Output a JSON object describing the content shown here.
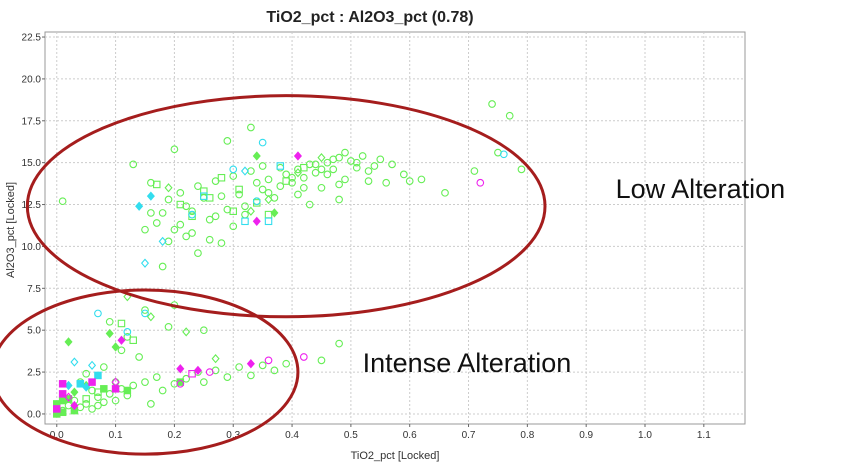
{
  "chart_data": {
    "type": "scatter",
    "title": "TiO2_pct : Al2O3_pct (0.78)",
    "xlabel": "TiO2_pct [Locked]",
    "ylabel": "Al2O3_pct [Locked]",
    "xlim": [
      -0.02,
      1.17
    ],
    "ylim": [
      -0.6,
      22.8
    ],
    "x_ticks": [
      "0.0",
      "0.1",
      "0.2",
      "0.3",
      "0.4",
      "0.5",
      "0.6",
      "0.7",
      "0.8",
      "0.9",
      "1.0",
      "1.1"
    ],
    "y_ticks": [
      "0.0",
      "2.5",
      "5.0",
      "7.5",
      "10.0",
      "12.5",
      "15.0",
      "17.5",
      "20.0",
      "22.5"
    ],
    "grid": true,
    "colors": {
      "green": "#66ee55",
      "cyan": "#33ddee",
      "magenta": "#ee22ee",
      "ellipse": "#a51d1d"
    },
    "annotations": [
      {
        "text": "Low Alteration",
        "x": 0.95,
        "y": 12.9,
        "ellipse": {
          "cx": 0.39,
          "cy": 12.4,
          "rx": 0.44,
          "ry": 6.6
        }
      },
      {
        "text": "Intense Alteration",
        "x": 0.52,
        "y": 2.5,
        "ellipse": {
          "cx": 0.15,
          "cy": 2.5,
          "rx": 0.26,
          "ry": 4.9
        }
      }
    ],
    "series": [
      {
        "name": "green-circle",
        "color": "#66ee55",
        "marker": "circle",
        "filled": false,
        "points": [
          [
            0.01,
            0.2
          ],
          [
            0.02,
            0.5
          ],
          [
            0.03,
            0.8
          ],
          [
            0.04,
            0.4
          ],
          [
            0.05,
            0.6
          ],
          [
            0.06,
            0.3
          ],
          [
            0.07,
            1.0
          ],
          [
            0.08,
            0.7
          ],
          [
            0.09,
            1.2
          ],
          [
            0.1,
            0.8
          ],
          [
            0.11,
            1.5
          ],
          [
            0.12,
            1.1
          ],
          [
            0.13,
            1.7
          ],
          [
            0.15,
            1.9
          ],
          [
            0.16,
            0.6
          ],
          [
            0.17,
            2.2
          ],
          [
            0.18,
            1.4
          ],
          [
            0.2,
            1.8
          ],
          [
            0.22,
            2.1
          ],
          [
            0.24,
            2.5
          ],
          [
            0.25,
            1.9
          ],
          [
            0.27,
            2.6
          ],
          [
            0.29,
            2.2
          ],
          [
            0.31,
            2.8
          ],
          [
            0.33,
            2.3
          ],
          [
            0.35,
            2.9
          ],
          [
            0.37,
            2.6
          ],
          [
            0.39,
            3.0
          ],
          [
            0.45,
            3.2
          ],
          [
            0.48,
            4.2
          ],
          [
            0.09,
            5.5
          ],
          [
            0.12,
            4.6
          ],
          [
            0.15,
            6.2
          ],
          [
            0.2,
            6.5
          ],
          [
            0.11,
            3.8
          ],
          [
            0.19,
            5.2
          ],
          [
            0.25,
            5.0
          ],
          [
            0.08,
            2.8
          ],
          [
            0.14,
            3.4
          ],
          [
            0.13,
            14.9
          ],
          [
            0.16,
            13.8
          ],
          [
            0.17,
            11.4
          ],
          [
            0.18,
            12.0
          ],
          [
            0.19,
            12.8
          ],
          [
            0.2,
            11.0
          ],
          [
            0.21,
            13.2
          ],
          [
            0.22,
            12.4
          ],
          [
            0.23,
            10.8
          ],
          [
            0.24,
            13.6
          ],
          [
            0.25,
            12.9
          ],
          [
            0.26,
            11.6
          ],
          [
            0.27,
            13.9
          ],
          [
            0.28,
            10.2
          ],
          [
            0.29,
            12.2
          ],
          [
            0.3,
            14.2
          ],
          [
            0.31,
            13.1
          ],
          [
            0.32,
            11.9
          ],
          [
            0.33,
            14.5
          ],
          [
            0.34,
            12.7
          ],
          [
            0.35,
            13.4
          ],
          [
            0.36,
            14.0
          ],
          [
            0.37,
            12.9
          ],
          [
            0.38,
            13.6
          ],
          [
            0.39,
            14.3
          ],
          [
            0.4,
            13.8
          ],
          [
            0.41,
            14.6
          ],
          [
            0.42,
            14.1
          ],
          [
            0.43,
            14.9
          ],
          [
            0.44,
            14.4
          ],
          [
            0.45,
            13.5
          ],
          [
            0.46,
            15.0
          ],
          [
            0.47,
            14.6
          ],
          [
            0.48,
            15.3
          ],
          [
            0.49,
            14.0
          ],
          [
            0.5,
            15.1
          ],
          [
            0.51,
            14.7
          ],
          [
            0.52,
            15.4
          ],
          [
            0.53,
            13.9
          ],
          [
            0.54,
            14.8
          ],
          [
            0.55,
            15.2
          ],
          [
            0.57,
            14.9
          ],
          [
            0.59,
            14.3
          ],
          [
            0.62,
            14.0
          ],
          [
            0.66,
            13.2
          ],
          [
            0.71,
            14.5
          ],
          [
            0.74,
            18.5
          ],
          [
            0.77,
            17.8
          ],
          [
            0.79,
            14.6
          ],
          [
            0.75,
            15.6
          ],
          [
            0.33,
            17.1
          ],
          [
            0.29,
            16.3
          ],
          [
            0.24,
            9.6
          ],
          [
            0.22,
            10.6
          ],
          [
            0.18,
            8.8
          ],
          [
            0.2,
            15.8
          ],
          [
            0.26,
            10.4
          ],
          [
            0.3,
            11.2
          ],
          [
            0.35,
            14.8
          ],
          [
            0.36,
            13.2
          ],
          [
            0.34,
            13.8
          ],
          [
            0.38,
            14.7
          ],
          [
            0.4,
            14.1
          ],
          [
            0.42,
            13.5
          ],
          [
            0.44,
            14.9
          ],
          [
            0.46,
            14.3
          ],
          [
            0.48,
            13.7
          ],
          [
            0.41,
            13.1
          ],
          [
            0.43,
            12.5
          ],
          [
            0.45,
            14.6
          ],
          [
            0.47,
            15.2
          ],
          [
            0.49,
            15.6
          ],
          [
            0.51,
            15.0
          ],
          [
            0.53,
            14.5
          ],
          [
            0.32,
            12.4
          ],
          [
            0.28,
            13.0
          ],
          [
            0.27,
            11.8
          ],
          [
            0.23,
            12.1
          ],
          [
            0.21,
            11.3
          ],
          [
            0.19,
            10.3
          ],
          [
            0.16,
            12.0
          ],
          [
            0.15,
            11.0
          ],
          [
            0.01,
            12.7
          ],
          [
            0.48,
            12.8
          ],
          [
            0.56,
            13.8
          ],
          [
            0.6,
            13.9
          ],
          [
            0.04,
            1.9
          ],
          [
            0.06,
            1.4
          ],
          [
            0.07,
            0.5
          ],
          [
            0.1,
            1.9
          ],
          [
            0.05,
            2.4
          ]
        ]
      },
      {
        "name": "green-square",
        "color": "#66ee55",
        "marker": "square",
        "filled": false,
        "points": [
          [
            0.17,
            13.7
          ],
          [
            0.21,
            12.5
          ],
          [
            0.23,
            11.8
          ],
          [
            0.26,
            12.9
          ],
          [
            0.28,
            14.1
          ],
          [
            0.31,
            13.4
          ],
          [
            0.34,
            12.6
          ],
          [
            0.36,
            11.9
          ],
          [
            0.39,
            13.9
          ],
          [
            0.42,
            14.7
          ],
          [
            0.3,
            12.1
          ],
          [
            0.25,
            13.3
          ],
          [
            0.11,
            5.4
          ],
          [
            0.13,
            4.4
          ],
          [
            0.07,
            1.3
          ],
          [
            0.05,
            0.9
          ]
        ]
      },
      {
        "name": "green-diamond",
        "color": "#66ee55",
        "marker": "diamond",
        "filled": false,
        "points": [
          [
            0.12,
            7.0
          ],
          [
            0.16,
            5.8
          ],
          [
            0.22,
            4.9
          ],
          [
            0.27,
            3.3
          ],
          [
            0.33,
            12.1
          ],
          [
            0.36,
            12.8
          ],
          [
            0.41,
            14.4
          ],
          [
            0.45,
            15.3
          ],
          [
            0.19,
            13.5
          ]
        ]
      },
      {
        "name": "green-square-filled",
        "color": "#66ee55",
        "marker": "square",
        "filled": true,
        "points": [
          [
            0.0,
            0.3
          ],
          [
            0.0,
            0.6
          ],
          [
            0.01,
            0.1
          ],
          [
            0.02,
            0.9
          ],
          [
            0.0,
            0.0
          ],
          [
            0.01,
            0.8
          ],
          [
            0.03,
            0.2
          ],
          [
            0.08,
            1.5
          ],
          [
            0.12,
            1.4
          ],
          [
            0.21,
            1.9
          ]
        ]
      },
      {
        "name": "green-diamond-filled",
        "color": "#66ee55",
        "marker": "diamond",
        "filled": true,
        "points": [
          [
            0.02,
            4.3
          ],
          [
            0.03,
            1.3
          ],
          [
            0.09,
            4.8
          ],
          [
            0.1,
            4.0
          ],
          [
            0.37,
            12.0
          ],
          [
            0.34,
            15.4
          ],
          [
            0.05,
            1.7
          ]
        ]
      },
      {
        "name": "cyan-circle",
        "color": "#33ddee",
        "marker": "circle",
        "filled": false,
        "points": [
          [
            0.07,
            6.0
          ],
          [
            0.12,
            4.9
          ],
          [
            0.15,
            6.0
          ],
          [
            0.35,
            16.2
          ],
          [
            0.76,
            15.5
          ],
          [
            0.34,
            12.7
          ],
          [
            0.3,
            14.6
          ],
          [
            0.23,
            11.9
          ]
        ]
      },
      {
        "name": "cyan-square",
        "color": "#33ddee",
        "marker": "square",
        "filled": false,
        "points": [
          [
            0.32,
            11.5
          ],
          [
            0.36,
            11.5
          ],
          [
            0.25,
            13.0
          ],
          [
            0.38,
            14.8
          ]
        ]
      },
      {
        "name": "cyan-diamond",
        "color": "#33ddee",
        "marker": "diamond",
        "filled": false,
        "points": [
          [
            0.15,
            9.0
          ],
          [
            0.18,
            10.3
          ],
          [
            0.03,
            3.1
          ],
          [
            0.06,
            2.9
          ],
          [
            0.32,
            14.5
          ]
        ]
      },
      {
        "name": "cyan-diamond-filled",
        "color": "#33ddee",
        "marker": "diamond",
        "filled": true,
        "points": [
          [
            0.14,
            12.4
          ],
          [
            0.16,
            13.0
          ],
          [
            0.05,
            1.6
          ],
          [
            0.02,
            1.7
          ]
        ]
      },
      {
        "name": "cyan-square-filled",
        "color": "#33ddee",
        "marker": "square",
        "filled": true,
        "points": [
          [
            0.07,
            2.3
          ],
          [
            0.04,
            1.8
          ]
        ]
      },
      {
        "name": "magenta-circle",
        "color": "#ee22ee",
        "marker": "circle",
        "filled": false,
        "points": [
          [
            0.72,
            13.8
          ],
          [
            0.42,
            3.4
          ],
          [
            0.36,
            3.2
          ],
          [
            0.26,
            2.5
          ],
          [
            0.21,
            1.8
          ]
        ]
      },
      {
        "name": "magenta-square",
        "color": "#ee22ee",
        "marker": "square",
        "filled": false,
        "points": [
          [
            0.23,
            2.4
          ]
        ]
      },
      {
        "name": "magenta-diamond",
        "color": "#ee22ee",
        "marker": "diamond",
        "filled": false,
        "points": [
          [
            0.1,
            1.9
          ],
          [
            0.02,
            1.0
          ]
        ]
      },
      {
        "name": "magenta-diamond-filled",
        "color": "#ee22ee",
        "marker": "diamond",
        "filled": true,
        "points": [
          [
            0.34,
            11.5
          ],
          [
            0.41,
            15.4
          ],
          [
            0.21,
            2.7
          ],
          [
            0.24,
            2.6
          ],
          [
            0.33,
            3.0
          ],
          [
            0.11,
            4.4
          ],
          [
            0.03,
            0.5
          ]
        ]
      },
      {
        "name": "magenta-square-filled",
        "color": "#ee22ee",
        "marker": "square",
        "filled": true,
        "points": [
          [
            0.01,
            1.8
          ],
          [
            0.06,
            1.9
          ],
          [
            0.0,
            0.3
          ],
          [
            0.01,
            1.2
          ],
          [
            0.1,
            1.5
          ]
        ]
      }
    ]
  }
}
